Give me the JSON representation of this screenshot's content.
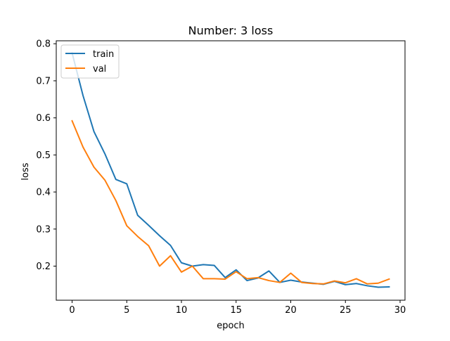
{
  "chart_data": {
    "type": "line",
    "title": "Number: 3 loss",
    "xlabel": "epoch",
    "ylabel": "loss",
    "xlim": [
      -1.45,
      30.45
    ],
    "ylim": [
      0.108,
      0.808
    ],
    "xticks": [
      0,
      5,
      10,
      15,
      20,
      25,
      30
    ],
    "xtick_labels": [
      "0",
      "5",
      "10",
      "15",
      "20",
      "25",
      "30"
    ],
    "yticks": [
      0.2,
      0.3,
      0.4,
      0.5,
      0.6,
      0.7,
      0.8
    ],
    "ytick_labels": [
      "0.2",
      "0.3",
      "0.4",
      "0.5",
      "0.6",
      "0.7",
      "0.8"
    ],
    "grid": false,
    "legend_position": "top-left",
    "x": [
      0,
      1,
      2,
      3,
      4,
      5,
      6,
      7,
      8,
      9,
      10,
      11,
      12,
      13,
      14,
      15,
      16,
      17,
      18,
      19,
      20,
      21,
      22,
      23,
      24,
      25,
      26,
      27,
      28,
      29
    ],
    "series": [
      {
        "name": "train",
        "color": "#1f77b4",
        "values": [
          0.775,
          0.66,
          0.563,
          0.503,
          0.434,
          0.422,
          0.337,
          0.31,
          0.282,
          0.256,
          0.209,
          0.2,
          0.204,
          0.202,
          0.169,
          0.19,
          0.161,
          0.168,
          0.187,
          0.156,
          0.162,
          0.157,
          0.154,
          0.151,
          0.159,
          0.15,
          0.153,
          0.147,
          0.143,
          0.144
        ]
      },
      {
        "name": "val",
        "color": "#ff7f0e",
        "values": [
          0.592,
          0.521,
          0.467,
          0.432,
          0.377,
          0.309,
          0.28,
          0.255,
          0.2,
          0.228,
          0.184,
          0.2,
          0.166,
          0.166,
          0.165,
          0.185,
          0.166,
          0.169,
          0.161,
          0.156,
          0.181,
          0.156,
          0.153,
          0.152,
          0.16,
          0.155,
          0.166,
          0.152,
          0.154,
          0.165
        ]
      }
    ]
  }
}
